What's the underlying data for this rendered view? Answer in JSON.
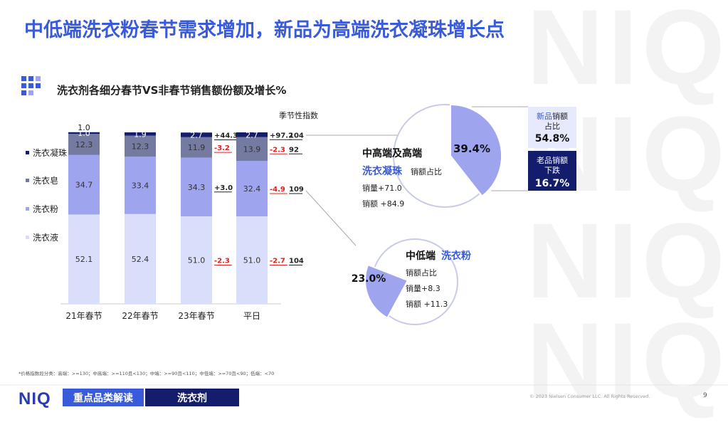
{
  "slide": {
    "title": "中低端洗衣粉春节需求增加，新品为高端洗衣凝珠增长点",
    "subtitle": "洗衣剂各细分春节VS非春节销售额份额及增长%",
    "season_index_label": "季节性指数",
    "footnote": "*价格指数段分类：高端：>=130；中高端：>=110且<130；中端：>=90且<110；中低端：>=70且<90；低端：<70",
    "watermark": "NIQ",
    "logo": "NIQ",
    "footer_button_1": "重点品类解读",
    "footer_button_2": "洗衣剂",
    "copyright": "© 2023 Nielsen Consumer LLC. All Rights Reserved.",
    "page_number": "9"
  },
  "legend": [
    {
      "label": "洗衣凝珠",
      "color": "#141d6b"
    },
    {
      "label": "洗衣皂",
      "color": "#747aa0"
    },
    {
      "label": "洗衣粉",
      "color": "#9ea4ee"
    },
    {
      "label": "洗衣液",
      "color": "#d9dffa"
    }
  ],
  "chart_data": [
    {
      "type": "bar",
      "stacked": true,
      "categories": [
        "21年春节",
        "22年春节",
        "23年春节",
        "平日"
      ],
      "series": [
        {
          "name": "洗衣液",
          "values": [
            52.1,
            52.4,
            51.0,
            51.0
          ],
          "color": "#d9dffa"
        },
        {
          "name": "洗衣粉",
          "values": [
            34.7,
            33.4,
            34.3,
            32.4
          ],
          "color": "#9ea4ee"
        },
        {
          "name": "洗衣皂",
          "values": [
            12.3,
            12.3,
            11.9,
            13.9
          ],
          "color": "#747aa0"
        },
        {
          "name": "洗衣凝珠",
          "values": [
            1.0,
            1.9,
            2.7,
            2.7
          ],
          "color": "#141d6b"
        }
      ],
      "bar_top_label_first": "1.0",
      "value_labels": [
        [
          "52.1",
          "34.7",
          "12.3",
          "1.0"
        ],
        [
          "52.4",
          "33.4",
          "12.3",
          "1.9"
        ],
        [
          "51.0",
          "34.3",
          "11.9",
          "2.7"
        ],
        [
          "51.0",
          "32.4",
          "13.9",
          "2.7"
        ]
      ],
      "growth_23": [
        "-2.3",
        "+3.0",
        "-3.2",
        "+44.3"
      ],
      "growth_weekday": [
        "-2.7",
        "-4.9",
        "-2.3",
        "+97.2"
      ],
      "season_index": [
        "104",
        "109",
        "92",
        "104"
      ],
      "ylim": [
        0,
        100
      ]
    },
    {
      "type": "pie",
      "title": "中高端及高端",
      "title_highlight": "洗衣凝珠",
      "share_label": "销额占比",
      "slices": [
        {
          "label": "39.4%",
          "value": 39.4
        }
      ],
      "volume_growth": "销量+71.0",
      "value_growth": "销额 +84.9",
      "new_box": {
        "title_accent": "新品",
        "title_rest": "销额",
        "line2": "占比",
        "value": "54.8%"
      },
      "old_box": {
        "line1": "老品销额",
        "line2": "下跌",
        "value": "16.7%"
      }
    },
    {
      "type": "pie",
      "title": "中低端",
      "title_highlight": "洗衣粉",
      "share_label": "销额占比",
      "slices": [
        {
          "label": "23.0%",
          "value": 23.0
        }
      ],
      "volume_growth": "销量+8.3",
      "value_growth": "销额 +11.3"
    }
  ]
}
